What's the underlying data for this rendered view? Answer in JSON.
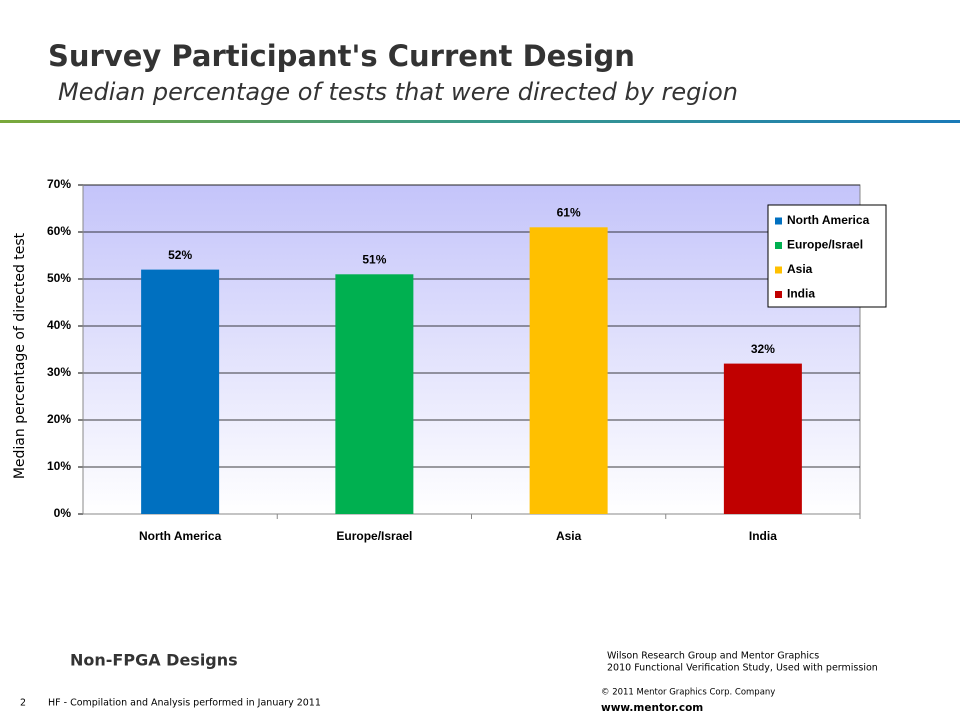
{
  "chart_data": {
    "type": "bar",
    "title": "Survey Participant's Current Design",
    "subtitle": "Median percentage of tests that were directed by region",
    "y_label": "Median percentage of directed test",
    "categories": [
      "North America",
      "Europe/Israel",
      "Asia",
      "India"
    ],
    "values": [
      52,
      51,
      61,
      32
    ],
    "value_labels": [
      "52%",
      "51%",
      "61%",
      "32%"
    ],
    "colors": [
      "#0070c0",
      "#00b050",
      "#ffc000",
      "#c00000"
    ],
    "ylim": [
      0,
      70
    ],
    "yticks": [
      {
        "value": 0,
        "label": "0%"
      },
      {
        "value": 10,
        "label": "10%"
      },
      {
        "value": 20,
        "label": "20%"
      },
      {
        "value": 30,
        "label": "30%"
      },
      {
        "value": 40,
        "label": "40%"
      },
      {
        "value": 50,
        "label": "50%"
      },
      {
        "value": 60,
        "label": "60%"
      },
      {
        "value": 70,
        "label": "70%"
      }
    ],
    "grid": true,
    "legend": "upper right"
  },
  "footer": {
    "note": "Non-FPGA Designs",
    "source_1": "Wilson Research Group and Mentor Graphics",
    "source_2": "2010 Functional Verification Study,  Used with permission",
    "page": "2",
    "compilation": "HF - Compilation and Analysis performed in January 2011",
    "copyright": "© 2011 Mentor Graphics Corp. Company",
    "url": "www.mentor.com"
  }
}
